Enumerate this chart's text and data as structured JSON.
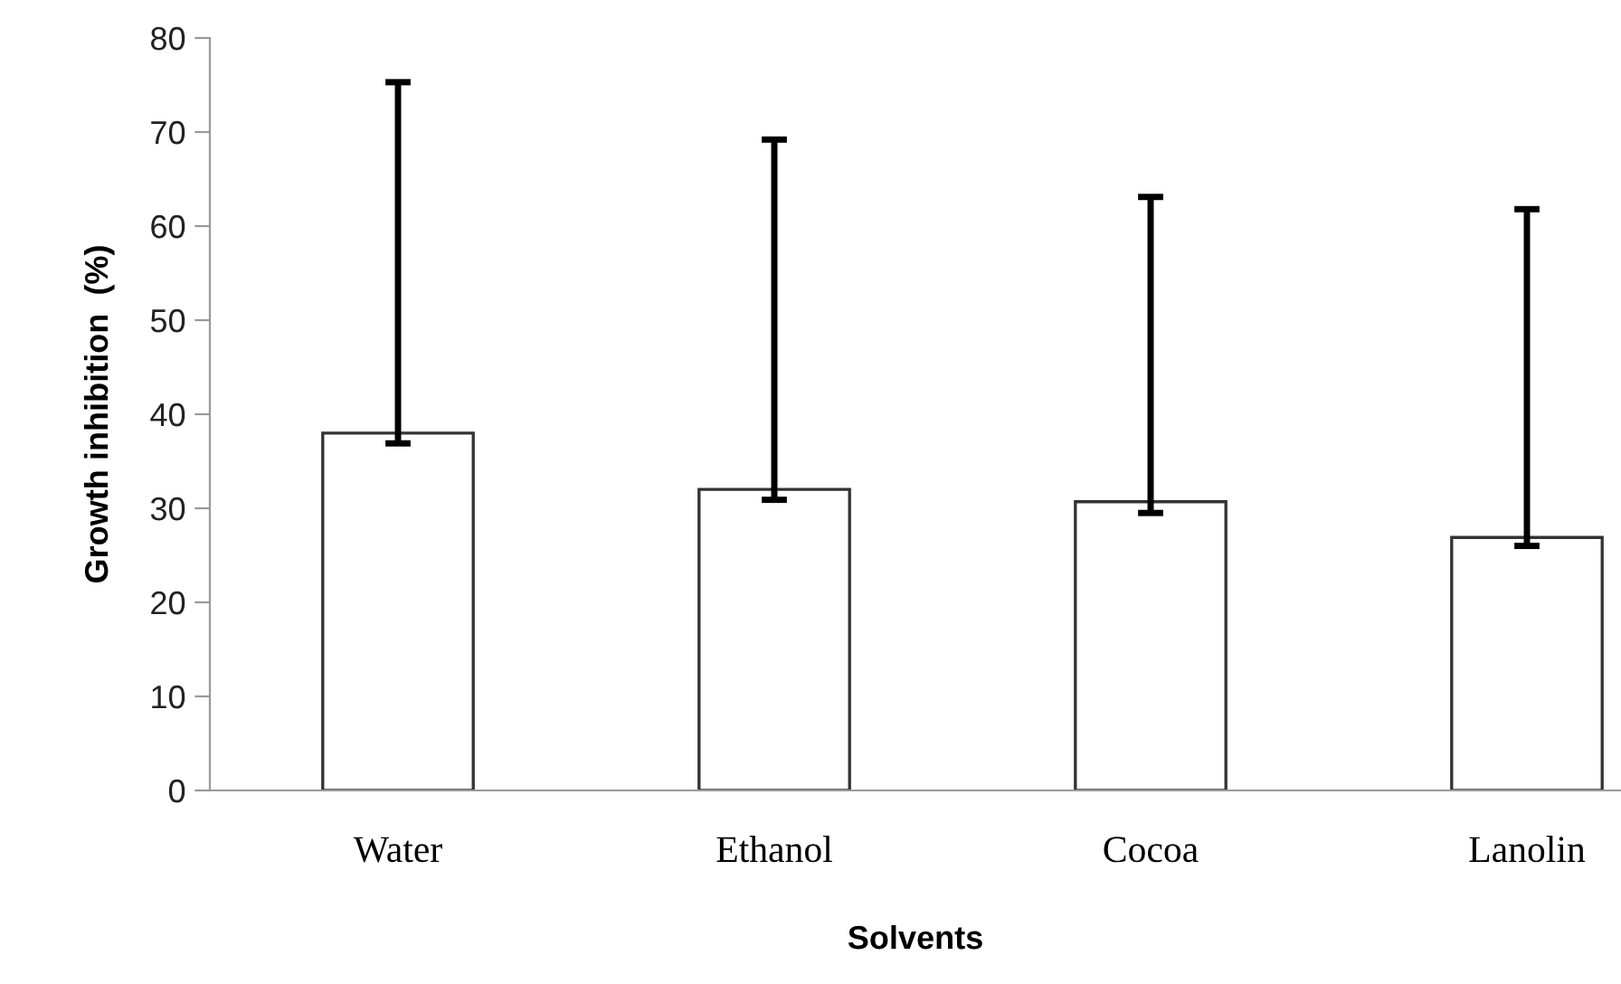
{
  "chart_data": {
    "type": "bar",
    "xlabel": "Solvents",
    "ylabel": "Growth inhibition  (%)",
    "categories": [
      "Water",
      "Ethanol",
      "Cocoa",
      "Lanolin"
    ],
    "values": [
      38,
      32,
      30.7,
      26.9
    ],
    "errors": [
      [
        36.9,
        75.3
      ],
      [
        30.9,
        69.2
      ],
      [
        29.5,
        63.1
      ],
      [
        26.0,
        61.8
      ]
    ],
    "color": "#ffffff",
    "ylim": [
      0,
      80
    ],
    "yticks": [
      0,
      10,
      20,
      30,
      40,
      50,
      60,
      70,
      80
    ],
    "grid": false
  }
}
